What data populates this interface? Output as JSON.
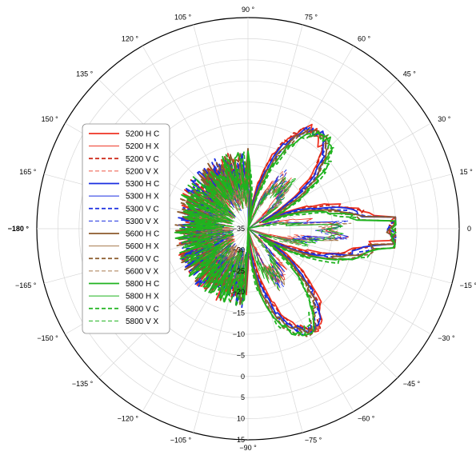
{
  "chart_data": {
    "type": "line",
    "polar": true,
    "title": "",
    "theta_ticks": [
      {
        "deg": 90,
        "label": "90 °"
      },
      {
        "deg": 75,
        "label": "75 °"
      },
      {
        "deg": 60,
        "label": "60 °"
      },
      {
        "deg": 45,
        "label": "45 °"
      },
      {
        "deg": 30,
        "label": "30 °"
      },
      {
        "deg": 15,
        "label": "15 °"
      },
      {
        "deg": 0,
        "label": "0"
      },
      {
        "deg": -15,
        "label": "−15 °"
      },
      {
        "deg": -30,
        "label": "−30 °"
      },
      {
        "deg": -45,
        "label": "−45 °"
      },
      {
        "deg": -60,
        "label": "−60 °"
      },
      {
        "deg": -75,
        "label": "−75 °"
      },
      {
        "deg": -90,
        "label": "−90 °"
      },
      {
        "deg": -105,
        "label": "−105 °"
      },
      {
        "deg": -120,
        "label": "−120 °"
      },
      {
        "deg": -135,
        "label": "−135 °"
      },
      {
        "deg": -150,
        "label": "−150 °"
      },
      {
        "deg": -165,
        "label": "−165 °"
      },
      {
        "deg": 180,
        "label": "−180 °"
      },
      {
        "deg": 165,
        "label": "165 °"
      },
      {
        "deg": 150,
        "label": "150 °"
      },
      {
        "deg": 135,
        "label": "135 °"
      },
      {
        "deg": 120,
        "label": "120 °"
      },
      {
        "deg": 105,
        "label": "105 °"
      }
    ],
    "r_ticks": [
      "−35",
      "−30",
      "−25",
      "−20",
      "−15",
      "−10",
      "−5",
      "0",
      "5",
      "10",
      "15"
    ],
    "r_range": [
      -35,
      15
    ],
    "grid": true,
    "legend_position": "left",
    "series": [
      {
        "name": "5200 H C",
        "color": "#ee3322",
        "dash": "solid",
        "width": 1.8,
        "phase": 0.0
      },
      {
        "name": "5200 H X",
        "color": "#ee3322",
        "dash": "solid",
        "width": 0.9,
        "phase": 0.3
      },
      {
        "name": "5200 V C",
        "color": "#cc2211",
        "dash": "dashed",
        "width": 1.8,
        "phase": 0.6
      },
      {
        "name": "5200 V X",
        "color": "#ee5544",
        "dash": "dashed",
        "width": 0.9,
        "phase": 0.9
      },
      {
        "name": "5300 H C",
        "color": "#1a2ee0",
        "dash": "solid",
        "width": 1.8,
        "phase": 1.2
      },
      {
        "name": "5300 H X",
        "color": "#1a2ee0",
        "dash": "solid",
        "width": 0.9,
        "phase": 1.5
      },
      {
        "name": "5300 V C",
        "color": "#1a2ee0",
        "dash": "dashed",
        "width": 1.8,
        "phase": 1.8
      },
      {
        "name": "5300 V X",
        "color": "#1a2ee0",
        "dash": "dashed",
        "width": 0.9,
        "phase": 2.1
      },
      {
        "name": "5600 H C",
        "color": "#8b5a2b",
        "dash": "solid",
        "width": 1.8,
        "phase": 2.4
      },
      {
        "name": "5600 H X",
        "color": "#a67a4d",
        "dash": "solid",
        "width": 0.9,
        "phase": 2.7
      },
      {
        "name": "5600 V C",
        "color": "#8b5a2b",
        "dash": "dashed",
        "width": 1.8,
        "phase": 3.0
      },
      {
        "name": "5600 V X",
        "color": "#a67a4d",
        "dash": "dashed",
        "width": 0.9,
        "phase": 3.3
      },
      {
        "name": "5800 H C",
        "color": "#1fb31f",
        "dash": "solid",
        "width": 1.8,
        "phase": 3.6
      },
      {
        "name": "5800 H X",
        "color": "#1fb31f",
        "dash": "solid",
        "width": 0.9,
        "phase": 3.9
      },
      {
        "name": "5800 V C",
        "color": "#1fb31f",
        "dash": "dashed",
        "width": 1.8,
        "phase": 4.2
      },
      {
        "name": "5800 V X",
        "color": "#1fb31f",
        "dash": "dashed",
        "width": 0.9,
        "phase": 4.5
      }
    ]
  }
}
